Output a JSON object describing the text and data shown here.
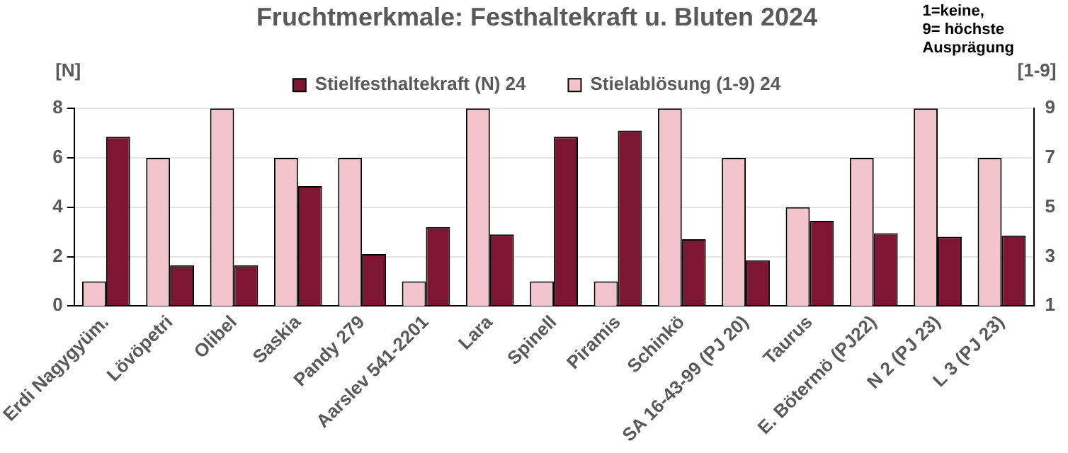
{
  "chart_data": {
    "type": "bar",
    "title": "Fruchtmerkmale: Festhaltekraft u. Bluten 2024",
    "ylabel": "[N]",
    "y2label": "[1-9]",
    "annotations": [
      "1=keine,\n9= höchste\nAusprägung"
    ],
    "categories": [
      "Erdi Nagygyüm.",
      "Lövöpetri",
      "Olibel",
      "Saskia",
      "Pandy 279",
      "Aarslev 541-2201",
      "Lara",
      "Spinell",
      "Piramis",
      "Schinkö",
      "SA 16-43-99 (PJ 20)",
      "Taurus",
      "E. Bötermö (PJ22)",
      "N 2 (PJ 23)",
      "L 3 (PJ 23)"
    ],
    "series": [
      {
        "name": "Stielfesthaltekraft (N) 24",
        "color": "#7d1632",
        "values": [
          6.85,
          1.65,
          1.65,
          4.85,
          2.1,
          3.2,
          2.9,
          6.85,
          7.1,
          2.7,
          1.85,
          3.45,
          2.95,
          2.8,
          2.85
        ]
      },
      {
        "name": "Stielablösung (1-9) 24",
        "color": "#f2c4cb",
        "axis": "y2",
        "values": [
          2,
          7,
          9,
          7,
          7,
          2,
          9,
          2,
          2,
          9,
          7,
          5,
          7,
          9,
          7
        ]
      }
    ],
    "ylim": [
      0,
      8
    ],
    "yticks": [
      0,
      2,
      4,
      6,
      8
    ],
    "y2lim": [
      1,
      9
    ],
    "y2ticks": [
      1,
      3,
      5,
      7,
      9
    ],
    "grid": "y",
    "legend": "top"
  }
}
